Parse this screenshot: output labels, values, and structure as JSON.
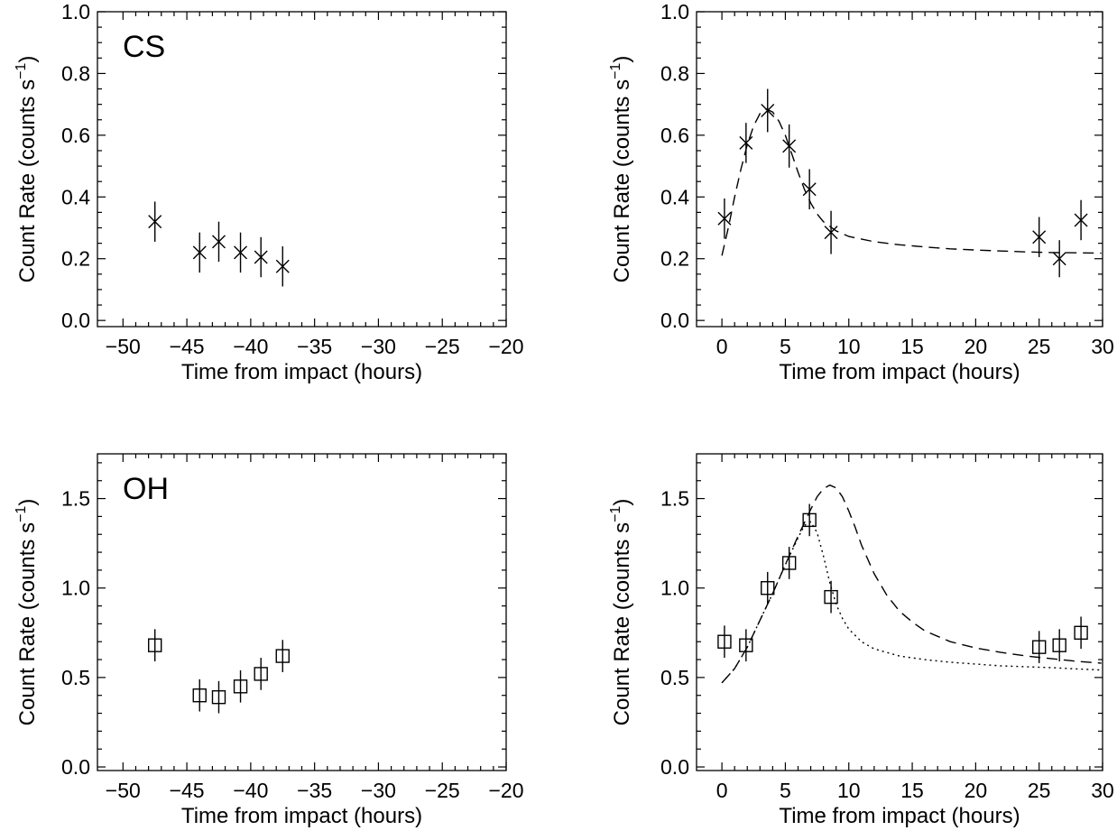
{
  "chart_data": [
    {
      "panel": "top-left",
      "type": "scatter",
      "annotation": "CS",
      "xlabel": "Time from impact (hours)",
      "ylabel": "Count Rate (counts s",
      "ylabel_sup": "−1",
      "ylabel_end": ")",
      "xlim": [
        -52,
        -20
      ],
      "ylim": [
        -0.02,
        1.0
      ],
      "xticks": [
        -50,
        -45,
        -40,
        -35,
        -30,
        -25,
        -20
      ],
      "xtick_labels": [
        "−50",
        "−45",
        "−40",
        "−35",
        "−30",
        "−25",
        "−20"
      ],
      "yticks": [
        0.0,
        0.2,
        0.4,
        0.6,
        0.8,
        1.0
      ],
      "ytick_labels": [
        "0.0",
        "0.2",
        "0.4",
        "0.6",
        "0.8",
        "1.0"
      ],
      "marker": "x",
      "points": [
        {
          "x": -47.5,
          "y": 0.32,
          "err": 0.065
        },
        {
          "x": -44.0,
          "y": 0.22,
          "err": 0.065
        },
        {
          "x": -42.5,
          "y": 0.255,
          "err": 0.065
        },
        {
          "x": -40.8,
          "y": 0.22,
          "err": 0.065
        },
        {
          "x": -39.2,
          "y": 0.205,
          "err": 0.065
        },
        {
          "x": -37.5,
          "y": 0.175,
          "err": 0.065
        }
      ],
      "curves": []
    },
    {
      "panel": "top-right",
      "type": "scatter",
      "annotation": "",
      "xlabel": "Time from impact (hours)",
      "ylabel": "Count Rate (counts s",
      "ylabel_sup": "−1",
      "ylabel_end": ")",
      "xlim": [
        -2,
        30
      ],
      "ylim": [
        -0.02,
        1.0
      ],
      "xticks": [
        0,
        5,
        10,
        15,
        20,
        25,
        30
      ],
      "xtick_labels": [
        "0",
        "5",
        "10",
        "15",
        "20",
        "25",
        "30"
      ],
      "yticks": [
        0.0,
        0.2,
        0.4,
        0.6,
        0.8,
        1.0
      ],
      "ytick_labels": [
        "0.0",
        "0.2",
        "0.4",
        "0.6",
        "0.8",
        "1.0"
      ],
      "marker": "x",
      "points": [
        {
          "x": 0.2,
          "y": 0.33,
          "err": 0.065
        },
        {
          "x": 1.9,
          "y": 0.575,
          "err": 0.065
        },
        {
          "x": 3.6,
          "y": 0.68,
          "err": 0.07
        },
        {
          "x": 5.3,
          "y": 0.565,
          "err": 0.07
        },
        {
          "x": 6.9,
          "y": 0.425,
          "err": 0.065
        },
        {
          "x": 8.6,
          "y": 0.285,
          "err": 0.07
        },
        {
          "x": 25.0,
          "y": 0.27,
          "err": 0.065
        },
        {
          "x": 26.6,
          "y": 0.2,
          "err": 0.06
        },
        {
          "x": 28.3,
          "y": 0.325,
          "err": 0.065
        }
      ],
      "curves": [
        {
          "style": "dashed",
          "points": [
            [
              0.0,
              0.21
            ],
            [
              0.5,
              0.3
            ],
            [
              1.0,
              0.4
            ],
            [
              1.5,
              0.49
            ],
            [
              2.0,
              0.57
            ],
            [
              2.5,
              0.63
            ],
            [
              3.0,
              0.67
            ],
            [
              3.5,
              0.685
            ],
            [
              4.0,
              0.675
            ],
            [
              4.5,
              0.645
            ],
            [
              5.0,
              0.6
            ],
            [
              5.5,
              0.54
            ],
            [
              6.0,
              0.48
            ],
            [
              6.5,
              0.425
            ],
            [
              7.0,
              0.38
            ],
            [
              7.5,
              0.345
            ],
            [
              8.0,
              0.32
            ],
            [
              9.0,
              0.29
            ],
            [
              10.0,
              0.272
            ],
            [
              12.0,
              0.255
            ],
            [
              14.0,
              0.245
            ],
            [
              16.0,
              0.238
            ],
            [
              18.0,
              0.232
            ],
            [
              20.0,
              0.228
            ],
            [
              22.0,
              0.225
            ],
            [
              24.0,
              0.222
            ],
            [
              26.0,
              0.22
            ],
            [
              28.0,
              0.219
            ],
            [
              29.9,
              0.218
            ]
          ]
        }
      ]
    },
    {
      "panel": "bottom-left",
      "type": "scatter",
      "annotation": "OH",
      "xlabel": "Time from impact (hours)",
      "ylabel": "Count Rate (counts s",
      "ylabel_sup": "−1",
      "ylabel_end": ")",
      "xlim": [
        -52,
        -20
      ],
      "ylim": [
        -0.02,
        1.75
      ],
      "xticks": [
        -50,
        -45,
        -40,
        -35,
        -30,
        -25,
        -20
      ],
      "xtick_labels": [
        "−50",
        "−45",
        "−40",
        "−35",
        "−30",
        "−25",
        "−20"
      ],
      "yticks": [
        0.0,
        0.5,
        1.0,
        1.5
      ],
      "ytick_labels": [
        "0.0",
        "0.5",
        "1.0",
        "1.5"
      ],
      "marker": "square",
      "points": [
        {
          "x": -47.5,
          "y": 0.68,
          "err": 0.09
        },
        {
          "x": -44.0,
          "y": 0.4,
          "err": 0.09
        },
        {
          "x": -42.5,
          "y": 0.39,
          "err": 0.09
        },
        {
          "x": -40.8,
          "y": 0.45,
          "err": 0.09
        },
        {
          "x": -39.2,
          "y": 0.52,
          "err": 0.09
        },
        {
          "x": -37.5,
          "y": 0.62,
          "err": 0.09
        }
      ],
      "curves": []
    },
    {
      "panel": "bottom-right",
      "type": "scatter",
      "annotation": "",
      "xlabel": "Time from impact (hours)",
      "ylabel": "Count Rate (counts s",
      "ylabel_sup": "−1",
      "ylabel_end": ")",
      "xlim": [
        -2,
        30
      ],
      "ylim": [
        -0.02,
        1.75
      ],
      "xticks": [
        0,
        5,
        10,
        15,
        20,
        25,
        30
      ],
      "xtick_labels": [
        "0",
        "5",
        "10",
        "15",
        "20",
        "25",
        "30"
      ],
      "yticks": [
        0.0,
        0.5,
        1.0,
        1.5
      ],
      "ytick_labels": [
        "0.0",
        "0.5",
        "1.0",
        "1.5"
      ],
      "marker": "square",
      "points": [
        {
          "x": 0.2,
          "y": 0.7,
          "err": 0.09
        },
        {
          "x": 1.9,
          "y": 0.68,
          "err": 0.09
        },
        {
          "x": 3.6,
          "y": 1.0,
          "err": 0.09
        },
        {
          "x": 5.3,
          "y": 1.14,
          "err": 0.09
        },
        {
          "x": 6.9,
          "y": 1.38,
          "err": 0.09
        },
        {
          "x": 8.6,
          "y": 0.95,
          "err": 0.09
        },
        {
          "x": 25.0,
          "y": 0.67,
          "err": 0.09
        },
        {
          "x": 26.6,
          "y": 0.68,
          "err": 0.09
        },
        {
          "x": 28.3,
          "y": 0.75,
          "err": 0.09
        }
      ],
      "curves": [
        {
          "style": "dashed",
          "points": [
            [
              0.0,
              0.47
            ],
            [
              1.0,
              0.55
            ],
            [
              2.0,
              0.67
            ],
            [
              3.0,
              0.82
            ],
            [
              4.0,
              0.97
            ],
            [
              5.0,
              1.13
            ],
            [
              6.0,
              1.29
            ],
            [
              7.0,
              1.44
            ],
            [
              7.5,
              1.51
            ],
            [
              8.0,
              1.555
            ],
            [
              8.5,
              1.575
            ],
            [
              9.0,
              1.56
            ],
            [
              9.5,
              1.51
            ],
            [
              10.0,
              1.43
            ],
            [
              10.5,
              1.34
            ],
            [
              11.0,
              1.24
            ],
            [
              12.0,
              1.08
            ],
            [
              13.0,
              0.96
            ],
            [
              14.0,
              0.87
            ],
            [
              15.0,
              0.81
            ],
            [
              16.0,
              0.76
            ],
            [
              18.0,
              0.7
            ],
            [
              20.0,
              0.665
            ],
            [
              22.0,
              0.64
            ],
            [
              24.0,
              0.62
            ],
            [
              26.0,
              0.605
            ],
            [
              28.0,
              0.59
            ],
            [
              29.9,
              0.58
            ]
          ]
        },
        {
          "style": "dotted",
          "points": [
            [
              0.0,
              0.47
            ],
            [
              1.0,
              0.55
            ],
            [
              2.0,
              0.67
            ],
            [
              3.0,
              0.82
            ],
            [
              4.0,
              0.97
            ],
            [
              5.0,
              1.13
            ],
            [
              6.0,
              1.28
            ],
            [
              6.5,
              1.35
            ],
            [
              7.0,
              1.37
            ],
            [
              7.5,
              1.31
            ],
            [
              8.0,
              1.18
            ],
            [
              8.5,
              1.03
            ],
            [
              9.0,
              0.91
            ],
            [
              9.5,
              0.83
            ],
            [
              10.0,
              0.77
            ],
            [
              11.0,
              0.7
            ],
            [
              12.0,
              0.66
            ],
            [
              14.0,
              0.62
            ],
            [
              16.0,
              0.6
            ],
            [
              18.0,
              0.585
            ],
            [
              20.0,
              0.575
            ],
            [
              22.0,
              0.565
            ],
            [
              24.0,
              0.56
            ],
            [
              26.0,
              0.555
            ],
            [
              28.0,
              0.548
            ],
            [
              29.9,
              0.542
            ]
          ]
        }
      ]
    }
  ]
}
